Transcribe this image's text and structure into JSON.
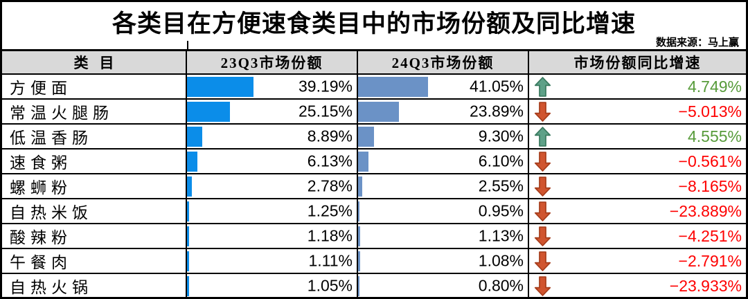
{
  "title": "各类目在方便速食类目中的市场份额及同比增速",
  "source": "数据来源：马上赢",
  "table": {
    "headers": [
      "类目",
      "23Q3市场份额",
      "24Q3市场份额",
      "市场份额同比增速"
    ],
    "rows": [
      {
        "category": "方便面",
        "q3_23": "39.19%",
        "q3_23_val": 39.19,
        "q3_24": "41.05%",
        "q3_24_val": 41.05,
        "growth": "4.749%",
        "direction": "up"
      },
      {
        "category": "常温火腿肠",
        "q3_23": "25.15%",
        "q3_23_val": 25.15,
        "q3_24": "23.89%",
        "q3_24_val": 23.89,
        "growth": "−5.013%",
        "direction": "down"
      },
      {
        "category": "低温香肠",
        "q3_23": "8.89%",
        "q3_23_val": 8.89,
        "q3_24": "9.30%",
        "q3_24_val": 9.3,
        "growth": "4.555%",
        "direction": "up"
      },
      {
        "category": "速食粥",
        "q3_23": "6.13%",
        "q3_23_val": 6.13,
        "q3_24": "6.10%",
        "q3_24_val": 6.1,
        "growth": "−0.561%",
        "direction": "down"
      },
      {
        "category": "螺蛳粉",
        "q3_23": "2.78%",
        "q3_23_val": 2.78,
        "q3_24": "2.55%",
        "q3_24_val": 2.55,
        "growth": "−8.165%",
        "direction": "down"
      },
      {
        "category": "自热米饭",
        "q3_23": "1.25%",
        "q3_23_val": 1.25,
        "q3_24": "0.95%",
        "q3_24_val": 0.95,
        "growth": "−23.889%",
        "direction": "down"
      },
      {
        "category": "酸辣粉",
        "q3_23": "1.18%",
        "q3_23_val": 1.18,
        "q3_24": "1.13%",
        "q3_24_val": 1.13,
        "growth": "−4.251%",
        "direction": "down"
      },
      {
        "category": "午餐肉",
        "q3_23": "1.11%",
        "q3_23_val": 1.11,
        "q3_24": "1.08%",
        "q3_24_val": 1.08,
        "growth": "−2.791%",
        "direction": "down"
      },
      {
        "category": "自热火锅",
        "q3_23": "1.05%",
        "q3_23_val": 1.05,
        "q3_24": "0.80%",
        "q3_24_val": 0.8,
        "growth": "−23.933%",
        "direction": "down"
      }
    ]
  },
  "chart_data": {
    "type": "table",
    "title": "各类目在方便速食类目中的市场份额及同比增速",
    "source": "数据来源：马上赢",
    "categories": [
      "方便面",
      "常温火腿肠",
      "低温香肠",
      "速食粥",
      "螺蛳粉",
      "自热米饭",
      "酸辣粉",
      "午餐肉",
      "自热火锅"
    ],
    "series": [
      {
        "name": "23Q3市场份额",
        "unit": "%",
        "values": [
          39.19,
          25.15,
          8.89,
          6.13,
          2.78,
          1.25,
          1.18,
          1.11,
          1.05
        ],
        "render": "databar",
        "bar_scale": [
          0,
          100
        ]
      },
      {
        "name": "24Q3市场份额",
        "unit": "%",
        "values": [
          41.05,
          23.89,
          9.3,
          6.1,
          2.55,
          0.95,
          1.13,
          1.08,
          0.8
        ],
        "render": "databar",
        "bar_scale": [
          0,
          100
        ]
      },
      {
        "name": "市场份额同比增速",
        "unit": "%",
        "values": [
          4.749,
          -5.013,
          4.555,
          -0.561,
          -8.165,
          -23.889,
          -4.251,
          -2.791,
          -23.933
        ],
        "render": "arrow+text"
      }
    ]
  },
  "colors": {
    "bar_23q3": "#0b8de9",
    "bar_24q3": "#6b92c6",
    "growth_positive": "#579b3a",
    "growth_negative": "#fe0000",
    "header_bg": "#d9d9d9",
    "arrow_up_fill": "#5ea188",
    "arrow_up_stroke": "#3a7a5f",
    "arrow_down_fill": "#d0552f",
    "arrow_down_stroke": "#a63d1b",
    "border": "#000000"
  }
}
